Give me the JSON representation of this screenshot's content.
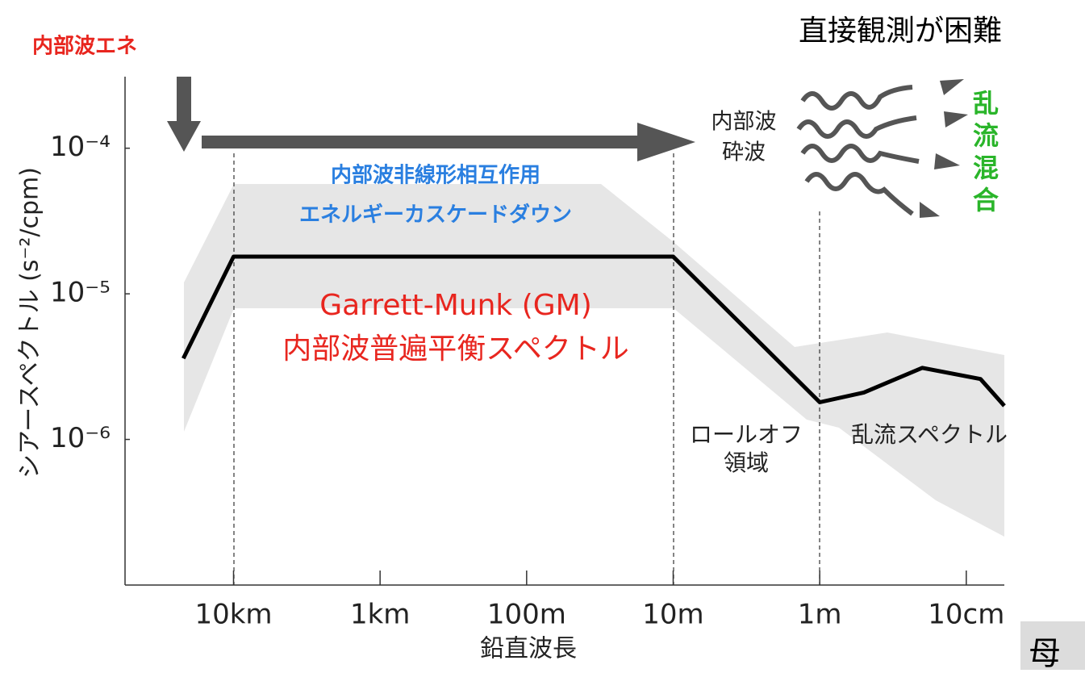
{
  "header": {
    "title_left": "内部波エネ",
    "title_right": "直接観測が困難"
  },
  "chart_data": {
    "type": "line",
    "xlabel": "鉛直波長",
    "ylabel": "シアースペクトル (s⁻²/cpm)",
    "x_log": true,
    "y_log": true,
    "xlim": [
      55000,
      0.055
    ],
    "ylim": [
      1e-07,
      0.00031
    ],
    "xticks": [
      {
        "value": 10000,
        "label": "10km"
      },
      {
        "value": 1000,
        "label": "1km"
      },
      {
        "value": 100,
        "label": "100m"
      },
      {
        "value": 10,
        "label": "10m"
      },
      {
        "value": 1,
        "label": "1m"
      },
      {
        "value": 0.1,
        "label": "10cm"
      }
    ],
    "yticks": [
      {
        "value": 0.0001,
        "label": "10⁻⁴"
      },
      {
        "value": 1e-05,
        "label": "10⁻⁵"
      },
      {
        "value": 1e-06,
        "label": "10⁻⁶"
      }
    ],
    "x": [
      22000,
      10000,
      10,
      1,
      0.5,
      0.2,
      0.08,
      0.055
    ],
    "values": [
      3.6e-06,
      1.8e-05,
      1.8e-05,
      1.8e-06,
      2.1e-06,
      3.1e-06,
      2.6e-06,
      1.7e-06
    ],
    "color": "#000000",
    "annotations": {
      "breaking": [
        "内部波",
        "砕波"
      ],
      "mixing": [
        "乱",
        "流",
        "混",
        "合"
      ],
      "cascade": [
        "内部波非線形相互作用",
        "エネルギーカスケードダウン"
      ],
      "gm": [
        "Garrett-Munk (GM)",
        "内部波普遍平衡スペクトル"
      ],
      "rolloff": [
        "ロールオフ",
        "領域"
      ],
      "turbulence": "乱流スペクトル"
    }
  },
  "footer": {
    "box": "母"
  }
}
